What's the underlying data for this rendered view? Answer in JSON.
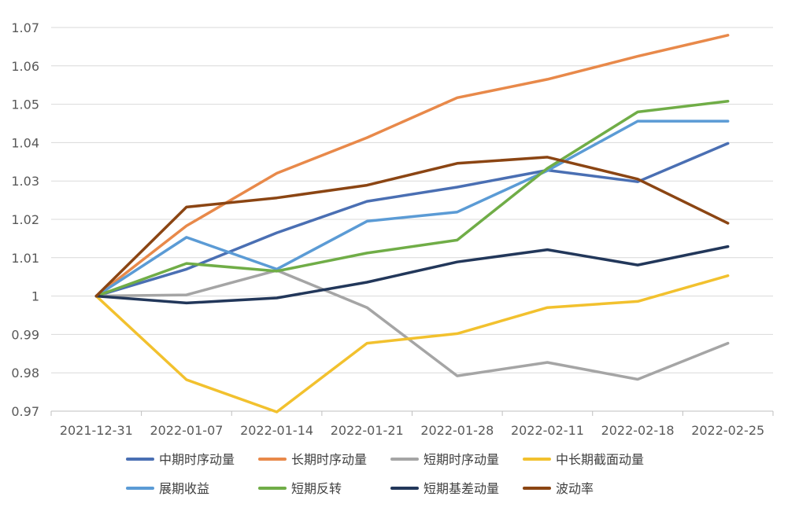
{
  "chart_data": {
    "type": "line",
    "title": "",
    "xlabel": "",
    "ylabel": "",
    "x": [
      "2021-12-31",
      "2022-01-07",
      "2022-01-14",
      "2022-01-21",
      "2022-01-28",
      "2022-02-11",
      "2022-02-18",
      "2022-02-25"
    ],
    "ylim": [
      0.97,
      1.07
    ],
    "yticks": [
      0.97,
      0.98,
      0.99,
      1,
      1.01,
      1.02,
      1.03,
      1.04,
      1.05,
      1.06,
      1.07
    ],
    "ytick_labels": [
      "0.97",
      "0.98",
      "0.99",
      "1",
      "1.01",
      "1.02",
      "1.03",
      "1.04",
      "1.05",
      "1.06",
      "1.07"
    ],
    "grid": "horizontal",
    "legend_position": "bottom",
    "series": [
      {
        "name": "中期时序动量",
        "color": "#4a6fb3",
        "values": [
          1.0,
          1.007,
          1.0165,
          1.0247,
          1.0284,
          1.0328,
          1.0298,
          1.0398
        ]
      },
      {
        "name": "长期时序动量",
        "color": "#e8894a",
        "values": [
          1.0,
          1.0183,
          1.032,
          1.0413,
          1.0517,
          1.0565,
          1.0625,
          1.068
        ]
      },
      {
        "name": "短期时序动量",
        "color": "#a5a5a5",
        "values": [
          1.0,
          1.0003,
          1.0067,
          0.997,
          0.9792,
          0.9827,
          0.9783,
          0.9877
        ]
      },
      {
        "name": "中长期截面动量",
        "color": "#f2c12e",
        "values": [
          1.0,
          0.9782,
          0.9698,
          0.9877,
          0.9902,
          0.997,
          0.9986,
          1.0053
        ]
      },
      {
        "name": "展期收益",
        "color": "#5b9bd5",
        "values": [
          1.0,
          1.0153,
          1.007,
          1.0195,
          1.0219,
          1.0327,
          1.0456,
          1.0456
        ]
      },
      {
        "name": "短期反转",
        "color": "#70ad47",
        "values": [
          1.0,
          1.0085,
          1.0065,
          1.0112,
          1.0146,
          1.0333,
          1.048,
          1.0508
        ]
      },
      {
        "name": "短期基差动量",
        "color": "#22375a",
        "values": [
          1.0,
          0.9982,
          0.9995,
          1.0036,
          1.0089,
          1.0121,
          1.0081,
          1.0129
        ]
      },
      {
        "name": "波动率",
        "color": "#8b4513",
        "values": [
          1.0,
          1.0232,
          1.0256,
          1.0289,
          1.0346,
          1.0362,
          1.0305,
          1.019
        ]
      }
    ]
  }
}
